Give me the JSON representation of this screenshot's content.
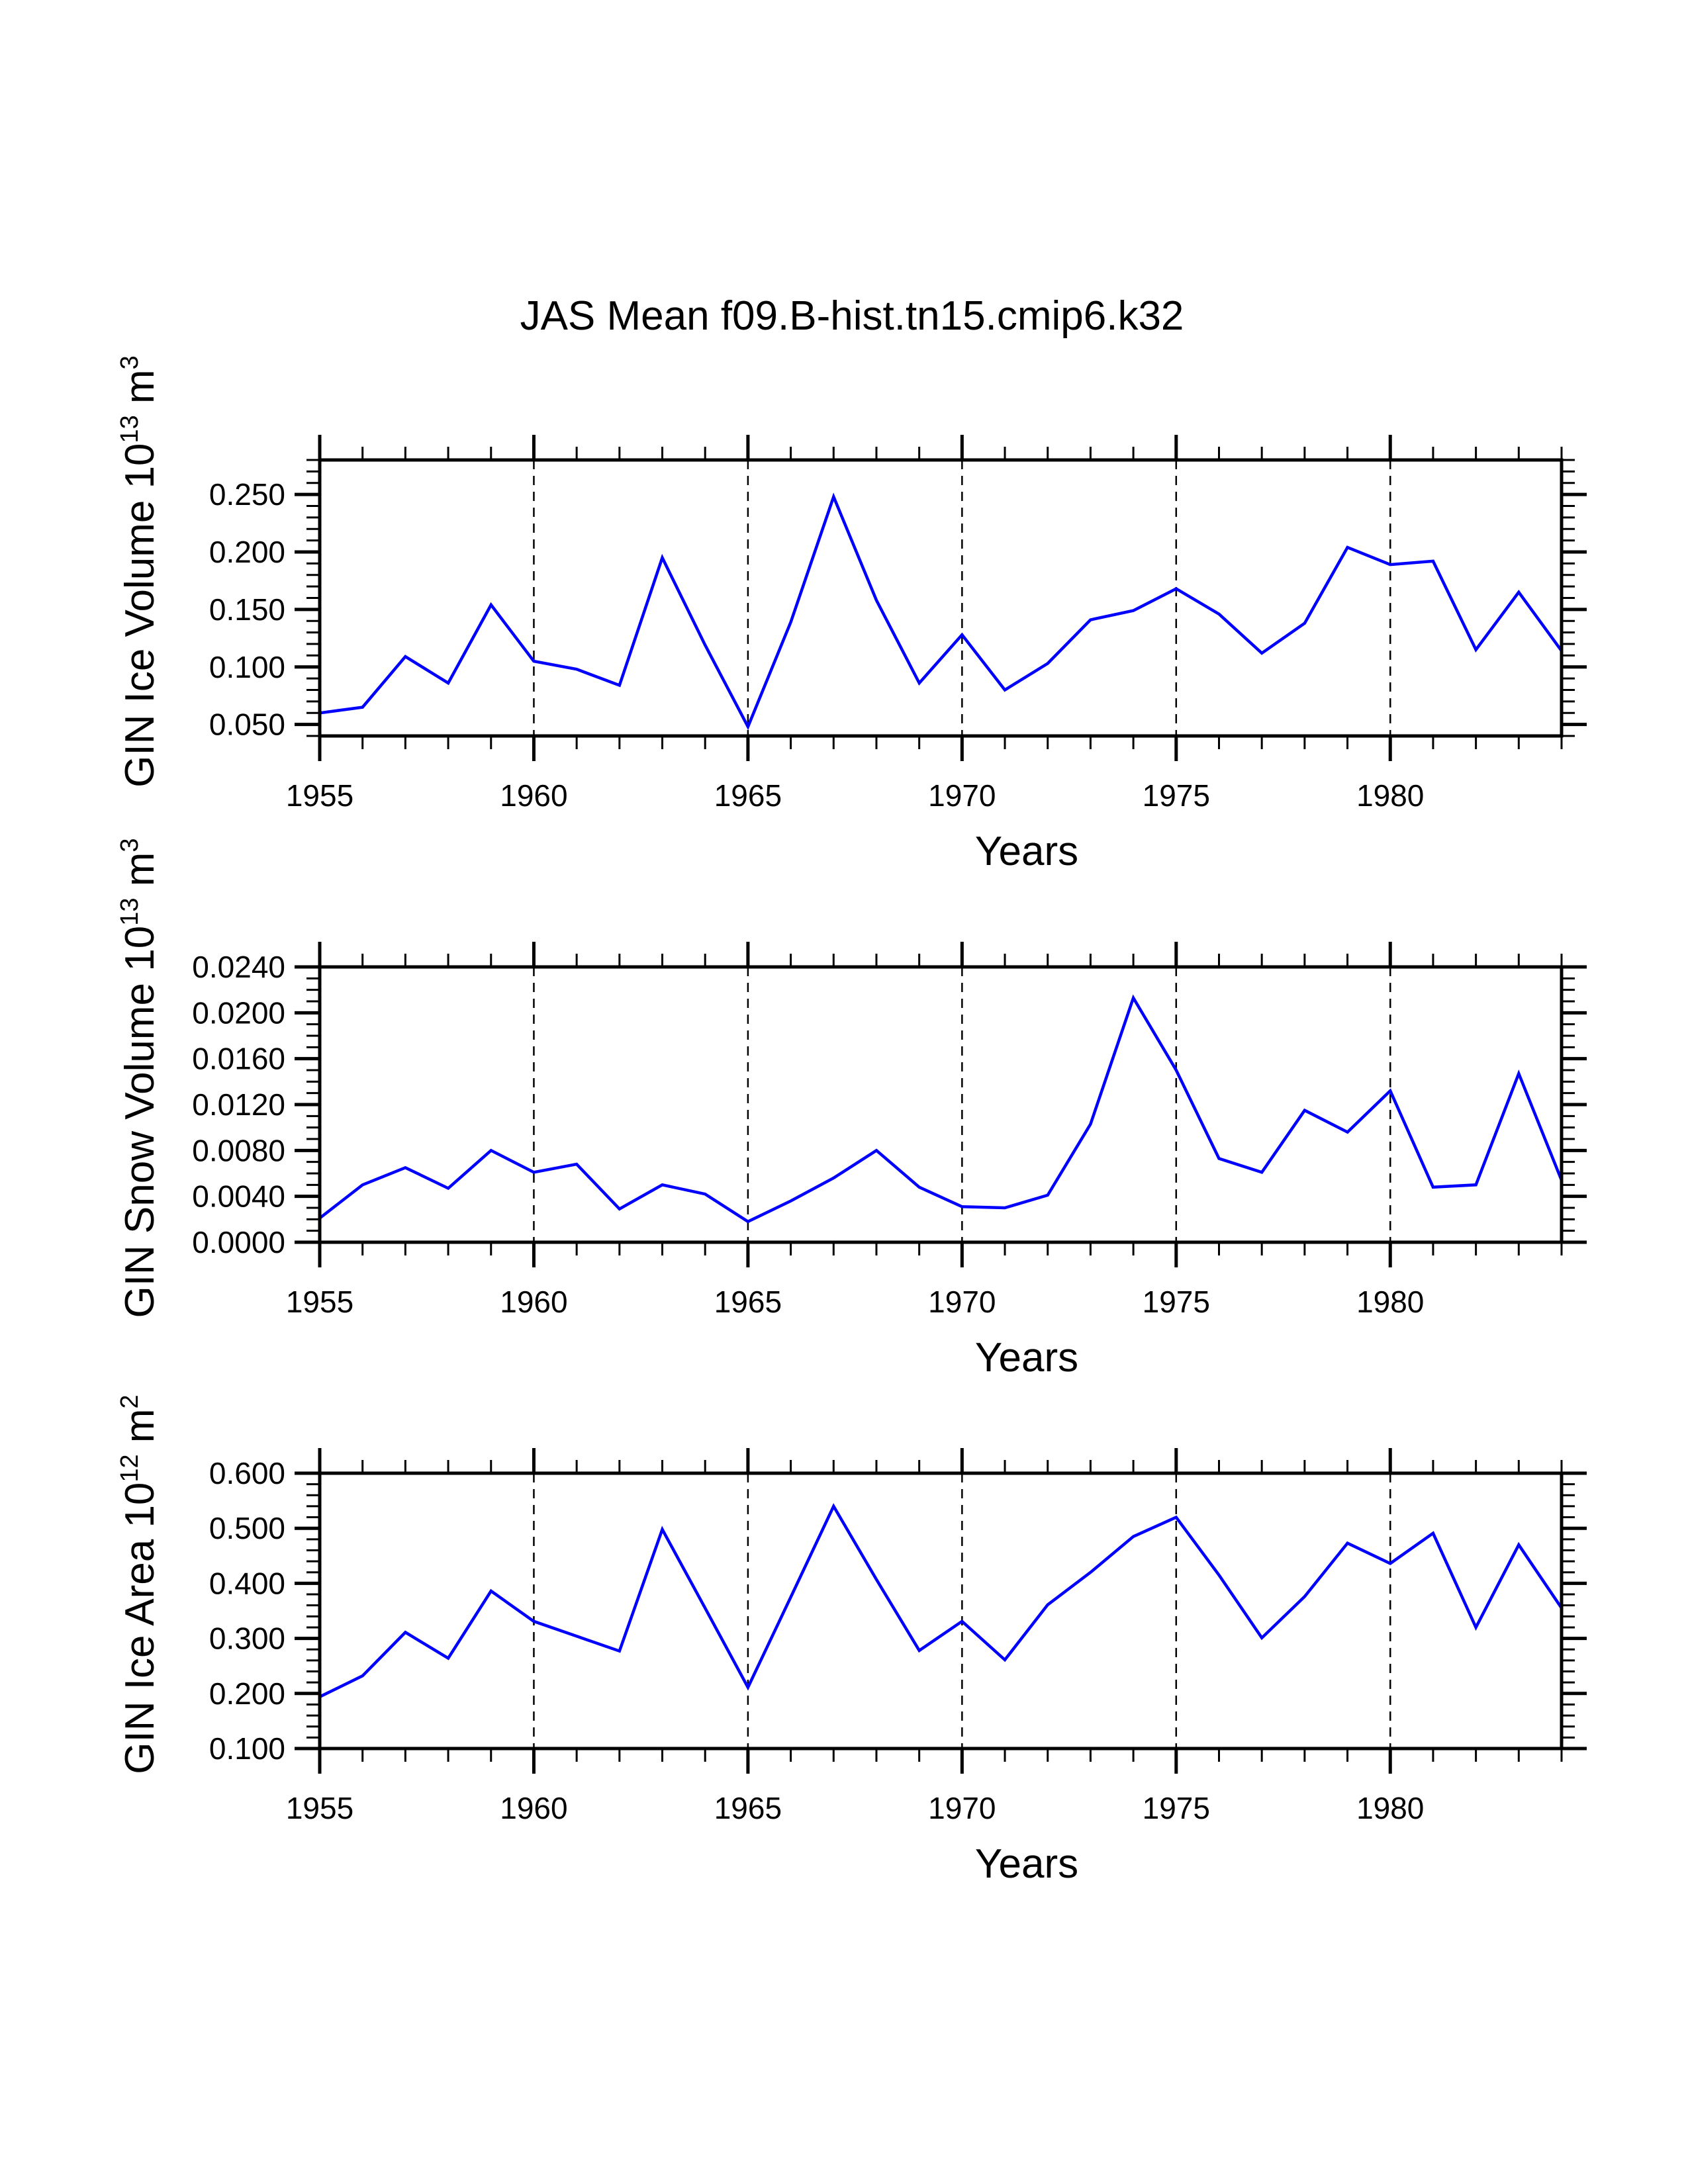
{
  "title": "JAS Mean f09.B-hist.tn15.cmip6.k32",
  "colors": {
    "series": "#0000ff",
    "axis": "#000000",
    "grid": "#000000",
    "background": "#ffffff"
  },
  "chart_data": [
    {
      "type": "line",
      "title": "JAS Mean f09.B-hist.tn15.cmip6.k32",
      "xlabel": "Years",
      "ylabel": "GIN Ice Volume 10",
      "ylabel_exp": "13",
      "ylabel_unit": " m",
      "ylabel_unit_exp": "3",
      "xlim": [
        1955,
        1984
      ],
      "ylim": [
        0.04,
        0.28
      ],
      "x_ticks": [
        1955,
        1960,
        1965,
        1970,
        1975,
        1980
      ],
      "x_tick_labels": [
        "1955",
        "1960",
        "1965",
        "1970",
        "1975",
        "1980"
      ],
      "y_ticks": [
        0.05,
        0.1,
        0.15,
        0.2,
        0.25
      ],
      "y_tick_labels": [
        "0.050",
        "0.100",
        "0.150",
        "0.200",
        "0.250"
      ],
      "y_minor_step": 0.01,
      "grid": "vertical dashed at major x ticks",
      "x": [
        1955,
        1956,
        1957,
        1958,
        1959,
        1960,
        1961,
        1962,
        1963,
        1964,
        1965,
        1966,
        1967,
        1968,
        1969,
        1970,
        1971,
        1972,
        1973,
        1974,
        1975,
        1976,
        1977,
        1978,
        1979,
        1980,
        1981,
        1982,
        1983,
        1984
      ],
      "series": [
        {
          "name": "GIN Ice Volume",
          "values": [
            0.06,
            0.065,
            0.109,
            0.086,
            0.154,
            0.105,
            0.098,
            0.084,
            0.195,
            0.119,
            0.048,
            0.139,
            0.248,
            0.158,
            0.086,
            0.128,
            0.08,
            0.103,
            0.141,
            0.149,
            0.168,
            0.146,
            0.112,
            0.138,
            0.204,
            0.189,
            0.192,
            0.115,
            0.165,
            0.114
          ]
        }
      ]
    },
    {
      "type": "line",
      "xlabel": "Years",
      "ylabel": "GIN Snow Volume 10",
      "ylabel_exp": "13",
      "ylabel_unit": " m",
      "ylabel_unit_exp": "3",
      "xlim": [
        1955,
        1984
      ],
      "ylim": [
        0.0,
        0.024
      ],
      "x_ticks": [
        1955,
        1960,
        1965,
        1970,
        1975,
        1980
      ],
      "x_tick_labels": [
        "1955",
        "1960",
        "1965",
        "1970",
        "1975",
        "1980"
      ],
      "y_ticks": [
        0.0,
        0.004,
        0.008,
        0.012,
        0.016,
        0.02,
        0.024
      ],
      "y_tick_labels": [
        "0.0000",
        "0.0040",
        "0.0080",
        "0.0120",
        "0.0160",
        "0.0200",
        "0.0240"
      ],
      "y_minor_step": 0.001,
      "grid": "vertical dashed at major x ticks",
      "x": [
        1955,
        1956,
        1957,
        1958,
        1959,
        1960,
        1961,
        1962,
        1963,
        1964,
        1965,
        1966,
        1967,
        1968,
        1969,
        1970,
        1971,
        1972,
        1973,
        1974,
        1975,
        1976,
        1977,
        1978,
        1979,
        1980,
        1981,
        1982,
        1983,
        1984
      ],
      "series": [
        {
          "name": "GIN Snow Volume",
          "values": [
            0.0021,
            0.005,
            0.0065,
            0.0047,
            0.008,
            0.0061,
            0.0068,
            0.0029,
            0.005,
            0.0042,
            0.0018,
            0.0036,
            0.0056,
            0.008,
            0.0048,
            0.0031,
            0.003,
            0.0041,
            0.0103,
            0.0213,
            0.015,
            0.0073,
            0.0061,
            0.0115,
            0.0096,
            0.0132,
            0.0048,
            0.005,
            0.0147,
            0.0054
          ]
        }
      ]
    },
    {
      "type": "line",
      "xlabel": "Years",
      "ylabel": "GIN Ice Area 10",
      "ylabel_exp": "12",
      "ylabel_unit": " m",
      "ylabel_unit_exp": "2",
      "xlim": [
        1955,
        1984
      ],
      "ylim": [
        0.1,
        0.6
      ],
      "x_ticks": [
        1955,
        1960,
        1965,
        1970,
        1975,
        1980
      ],
      "x_tick_labels": [
        "1955",
        "1960",
        "1965",
        "1970",
        "1975",
        "1980"
      ],
      "y_ticks": [
        0.1,
        0.2,
        0.3,
        0.4,
        0.5,
        0.6
      ],
      "y_tick_labels": [
        "0.100",
        "0.200",
        "0.300",
        "0.400",
        "0.500",
        "0.600"
      ],
      "y_minor_step": 0.02,
      "grid": "vertical dashed at major x ticks",
      "x": [
        1955,
        1956,
        1957,
        1958,
        1959,
        1960,
        1961,
        1962,
        1963,
        1964,
        1965,
        1966,
        1967,
        1968,
        1969,
        1970,
        1971,
        1972,
        1973,
        1974,
        1975,
        1976,
        1977,
        1978,
        1979,
        1980,
        1981,
        1982,
        1983,
        1984
      ],
      "series": [
        {
          "name": "GIN Ice Area",
          "values": [
            0.194,
            0.232,
            0.311,
            0.264,
            0.386,
            0.331,
            0.304,
            0.277,
            0.498,
            0.355,
            0.211,
            0.375,
            0.54,
            0.407,
            0.278,
            0.331,
            0.261,
            0.361,
            0.42,
            0.485,
            0.52,
            0.415,
            0.301,
            0.376,
            0.473,
            0.436,
            0.491,
            0.32,
            0.47,
            0.355
          ]
        }
      ]
    }
  ]
}
